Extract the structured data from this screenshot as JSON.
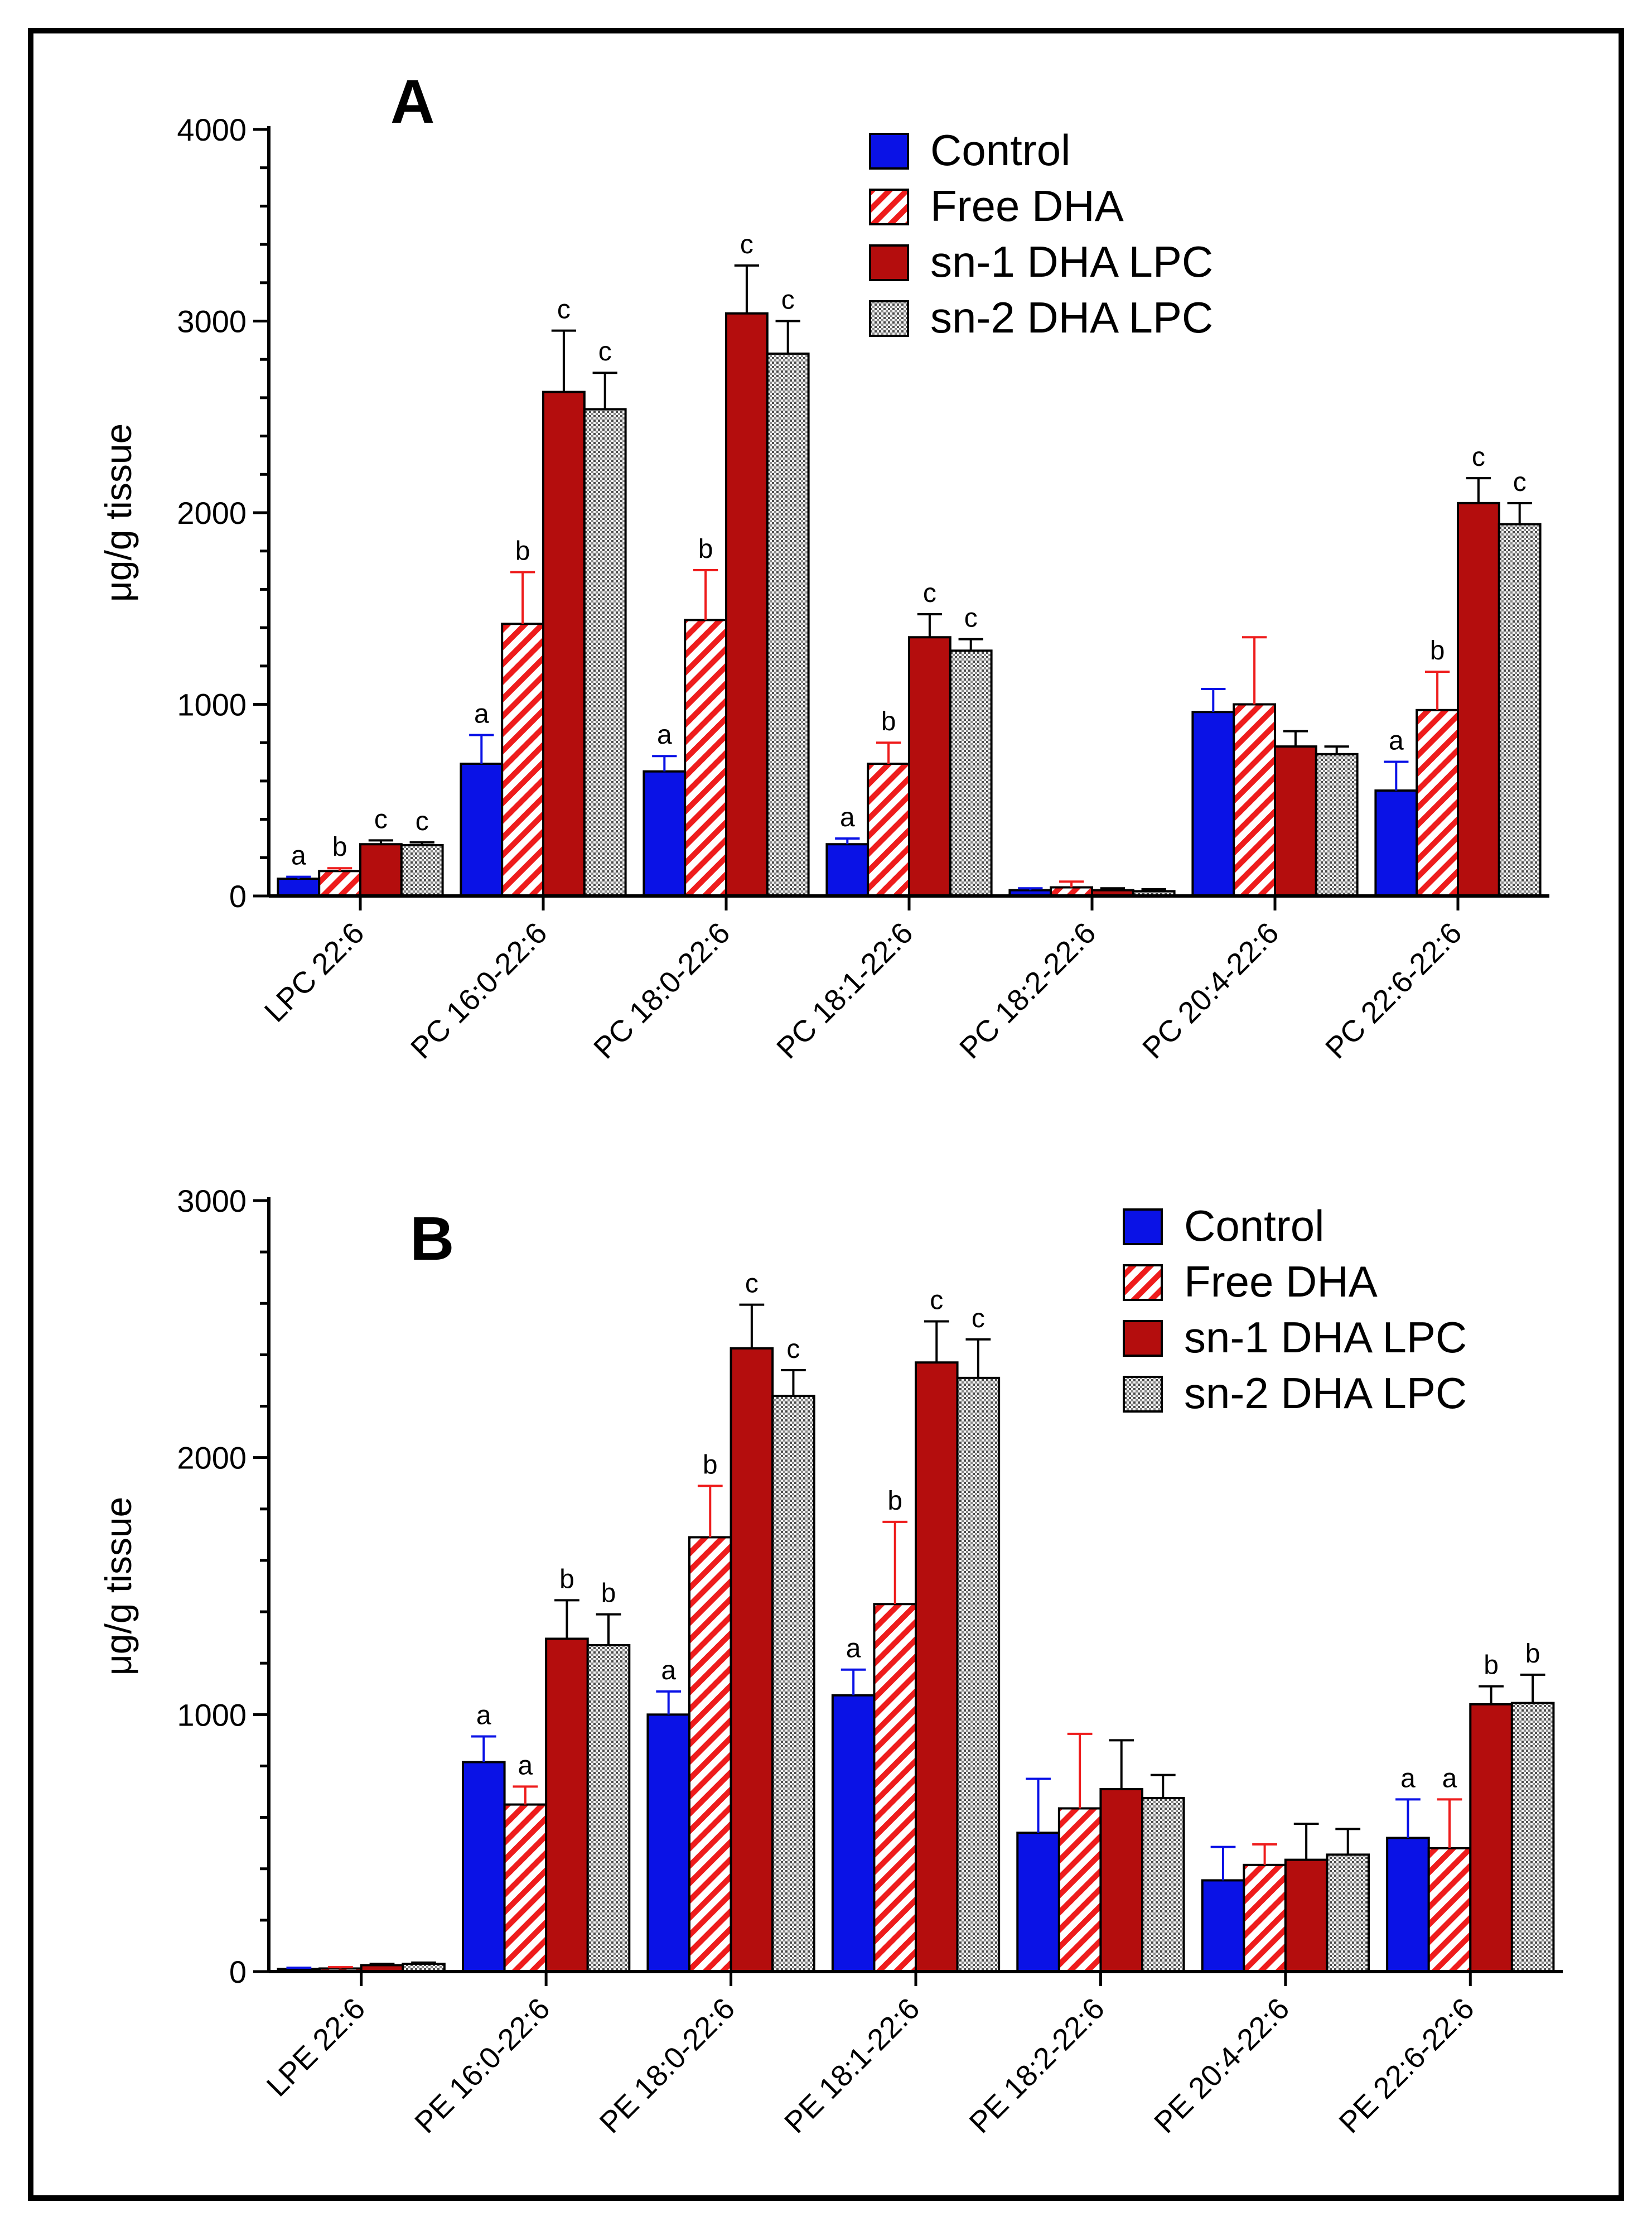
{
  "figure": {
    "series_names": [
      "Control",
      "Free DHA",
      "sn-1 DHA LPC",
      "sn-2 DHA LPC"
    ],
    "series_colors": [
      "#0a12e6",
      "#ee1c1c",
      "#b40d0d",
      "#9a9a9a"
    ]
  },
  "chart_data": [
    {
      "type": "bar",
      "panel": "A",
      "ylabel": "μg/g tissue",
      "ylim": [
        0,
        4000
      ],
      "yticks": [
        0,
        1000,
        2000,
        3000,
        4000
      ],
      "categories": [
        "LPC 22:6",
        "PC 16:0-22:6",
        "PC 18:0-22:6",
        "PC 18:1-22:6",
        "PC 18:2-22:6",
        "PC 20:4-22:6",
        "PC 22:6-22:6"
      ],
      "series": [
        {
          "name": "Control",
          "values": [
            90,
            690,
            650,
            270,
            30,
            960,
            550
          ],
          "errors": [
            10,
            150,
            80,
            30,
            10,
            120,
            150
          ],
          "labels": [
            "a",
            "a",
            "a",
            "a",
            "",
            "",
            "a"
          ]
        },
        {
          "name": "Free DHA",
          "values": [
            130,
            1420,
            1440,
            690,
            45,
            1000,
            970
          ],
          "errors": [
            15,
            270,
            260,
            110,
            30,
            350,
            200
          ],
          "labels": [
            "b",
            "b",
            "b",
            "b",
            "",
            "",
            "b"
          ]
        },
        {
          "name": "sn-1 DHA LPC",
          "values": [
            270,
            2630,
            3040,
            1350,
            30,
            780,
            2050
          ],
          "errors": [
            20,
            320,
            250,
            120,
            10,
            80,
            130
          ],
          "labels": [
            "c",
            "c",
            "c",
            "c",
            "",
            "",
            "c"
          ]
        },
        {
          "name": "sn-2 DHA LPC",
          "values": [
            265,
            2540,
            2830,
            1280,
            25,
            740,
            1940
          ],
          "errors": [
            15,
            190,
            170,
            60,
            10,
            40,
            110
          ],
          "labels": [
            "c",
            "c",
            "c",
            "c",
            "",
            "",
            "c"
          ]
        }
      ]
    },
    {
      "type": "bar",
      "panel": "B",
      "ylabel": "μg/g tissue",
      "ylim": [
        0,
        3000
      ],
      "yticks": [
        0,
        1000,
        2000,
        3000
      ],
      "categories": [
        "LPE 22:6",
        "PE 16:0-22:6",
        "PE 18:0-22:6",
        "PE 18:1-22:6",
        "PE 18:2-22:6",
        "PE 20:4-22:6",
        "PE 22:6-22:6"
      ],
      "series": [
        {
          "name": "Control",
          "values": [
            10,
            815,
            1000,
            1075,
            540,
            355,
            520
          ],
          "errors": [
            5,
            100,
            90,
            100,
            210,
            130,
            150
          ],
          "labels": [
            "",
            "a",
            "a",
            "a",
            "",
            "",
            "a"
          ]
        },
        {
          "name": "Free DHA",
          "values": [
            12,
            650,
            1690,
            1430,
            635,
            415,
            480
          ],
          "errors": [
            5,
            70,
            200,
            320,
            290,
            80,
            190
          ],
          "labels": [
            "",
            "a",
            "b",
            "b",
            "",
            "",
            "a"
          ]
        },
        {
          "name": "sn-1 DHA LPC",
          "values": [
            25,
            1295,
            2425,
            2370,
            710,
            435,
            1040
          ],
          "errors": [
            5,
            150,
            170,
            160,
            190,
            140,
            70
          ],
          "labels": [
            "",
            "b",
            "c",
            "c",
            "",
            "",
            "b"
          ]
        },
        {
          "name": "sn-2 DHA LPC",
          "values": [
            30,
            1270,
            2240,
            2310,
            675,
            455,
            1045
          ],
          "errors": [
            5,
            120,
            100,
            150,
            90,
            100,
            110
          ],
          "labels": [
            "",
            "b",
            "c",
            "c",
            "",
            "",
            "b"
          ]
        }
      ]
    }
  ]
}
